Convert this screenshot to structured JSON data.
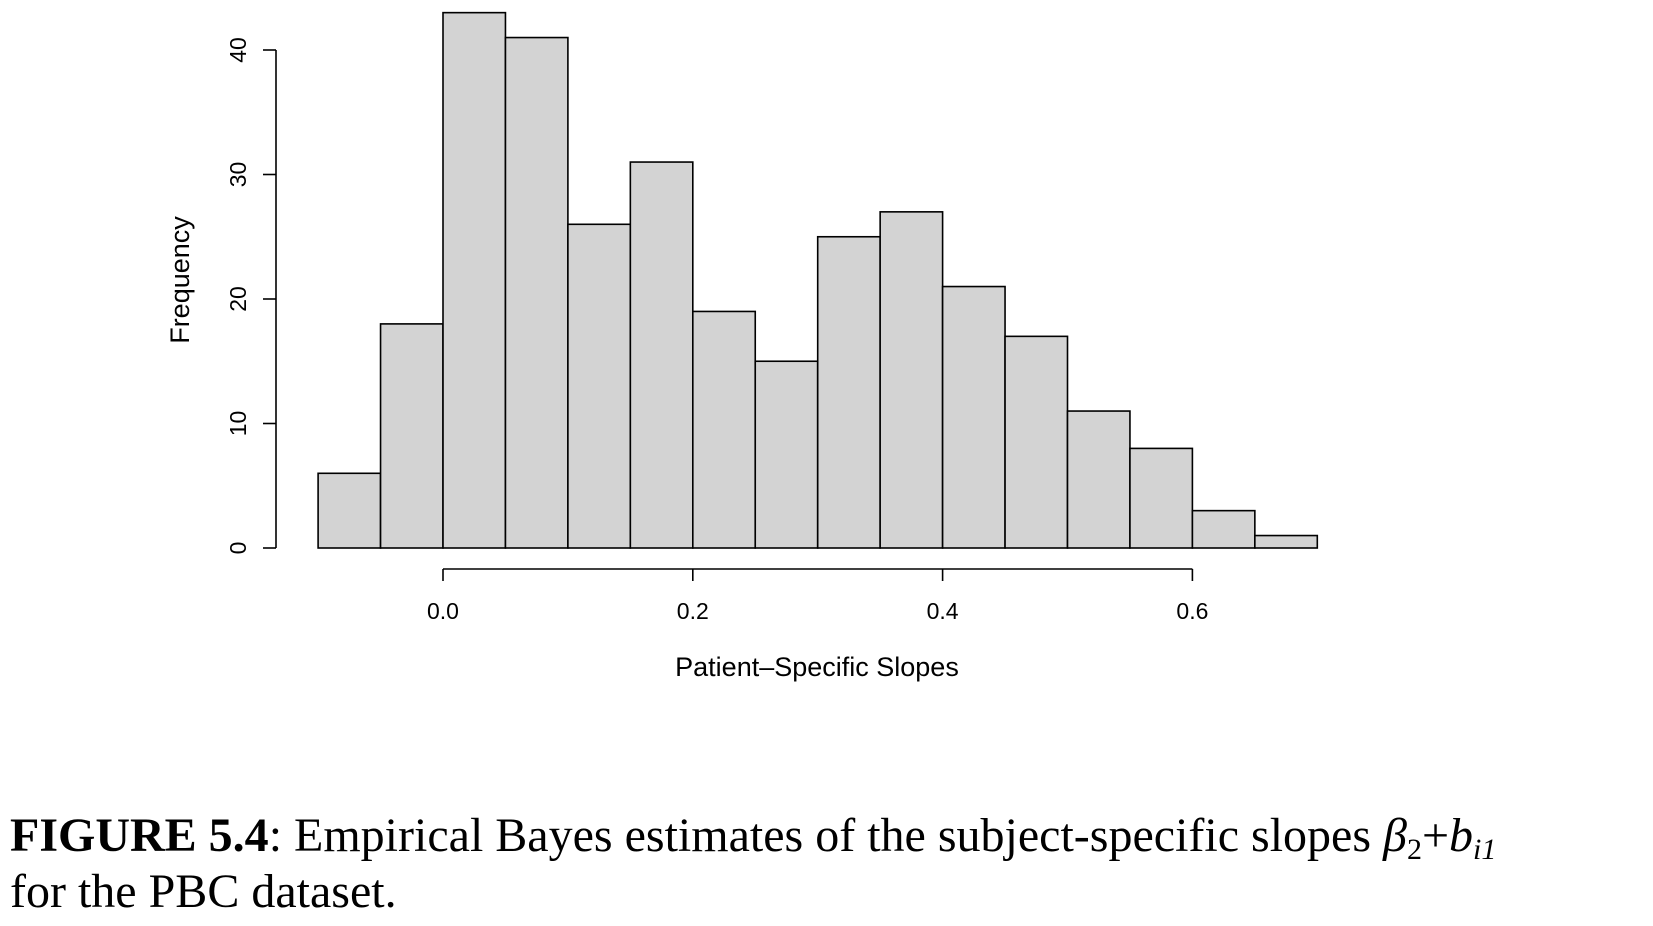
{
  "chart_data": {
    "type": "bar",
    "title": "",
    "xlabel": "Patient–Specific Slopes",
    "ylabel": "Frequency",
    "bins": [
      {
        "start": -0.1,
        "end": -0.05,
        "value": 6
      },
      {
        "start": -0.05,
        "end": 0.0,
        "value": 18
      },
      {
        "start": 0.0,
        "end": 0.05,
        "value": 43
      },
      {
        "start": 0.05,
        "end": 0.1,
        "value": 41
      },
      {
        "start": 0.1,
        "end": 0.15,
        "value": 26
      },
      {
        "start": 0.15,
        "end": 0.2,
        "value": 31
      },
      {
        "start": 0.2,
        "end": 0.25,
        "value": 19
      },
      {
        "start": 0.25,
        "end": 0.3,
        "value": 15
      },
      {
        "start": 0.3,
        "end": 0.35,
        "value": 25
      },
      {
        "start": 0.35,
        "end": 0.4,
        "value": 27
      },
      {
        "start": 0.4,
        "end": 0.45,
        "value": 21
      },
      {
        "start": 0.45,
        "end": 0.5,
        "value": 17
      },
      {
        "start": 0.5,
        "end": 0.55,
        "value": 11
      },
      {
        "start": 0.55,
        "end": 0.6,
        "value": 8
      },
      {
        "start": 0.6,
        "end": 0.65,
        "value": 3
      },
      {
        "start": 0.65,
        "end": 0.7,
        "value": 1
      }
    ],
    "xticks": [
      {
        "value": 0.0,
        "label": "0.0"
      },
      {
        "value": 0.2,
        "label": "0.2"
      },
      {
        "value": 0.4,
        "label": "0.4"
      },
      {
        "value": 0.6,
        "label": "0.6"
      }
    ],
    "yticks": [
      {
        "value": 0,
        "label": "0"
      },
      {
        "value": 10,
        "label": "10"
      },
      {
        "value": 20,
        "label": "20"
      },
      {
        "value": 30,
        "label": "30"
      },
      {
        "value": 40,
        "label": "40"
      }
    ],
    "xlim": [
      -0.1,
      0.7
    ],
    "ylim": [
      0,
      43
    ],
    "bar_color": "#d3d3d3",
    "grid": false,
    "legend": "none"
  },
  "caption": {
    "label": "FIGURE 5.4",
    "text": ": Empirical Bayes estimates of the subject-specific slopes ",
    "beta": "β",
    "beta_sub": "2",
    "plus": "+",
    "b": "b",
    "b_sub": "i1",
    "line2": "for the PBC dataset."
  }
}
